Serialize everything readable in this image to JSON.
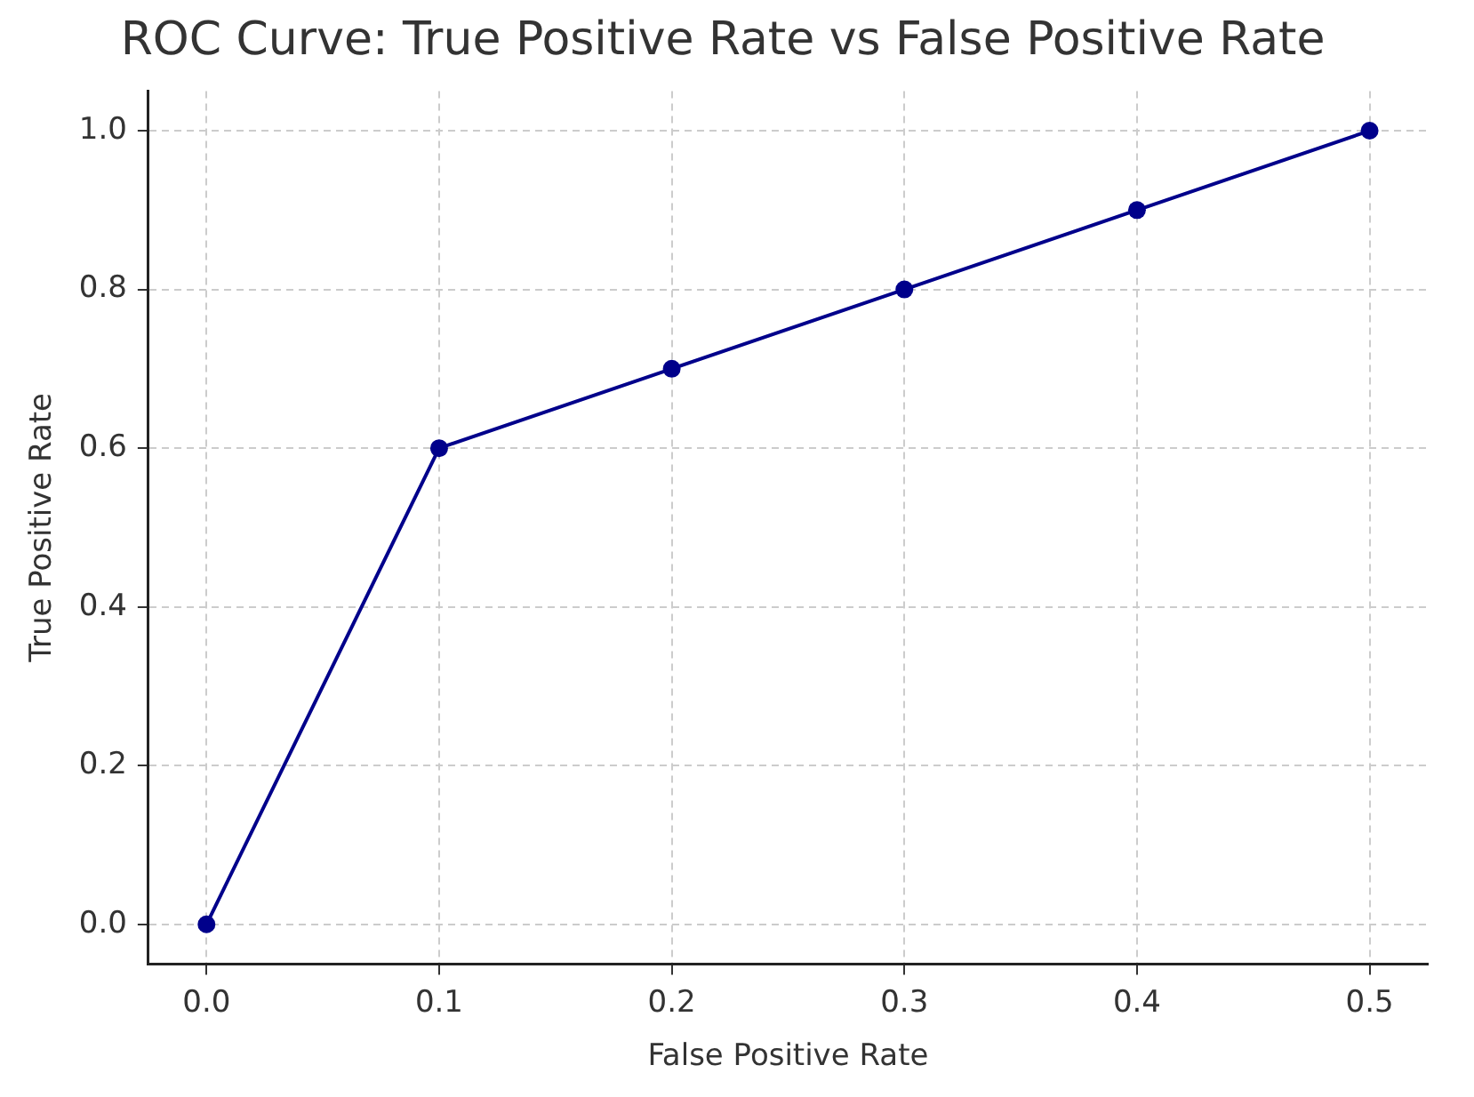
{
  "chart_data": {
    "type": "line",
    "title": "ROC Curve: True Positive Rate vs False Positive Rate",
    "xlabel": "False Positive Rate",
    "ylabel": "True Positive Rate",
    "x": [
      0.0,
      0.1,
      0.2,
      0.3,
      0.4,
      0.5
    ],
    "series": [
      {
        "color": "#00008b",
        "values": [
          0.0,
          0.6,
          0.7,
          0.8,
          0.9,
          1.0
        ]
      }
    ],
    "xlim": [
      -0.025,
      0.525
    ],
    "xticks": [
      {
        "value": 0,
        "label": "0.0"
      },
      {
        "value": 0.1,
        "label": "0.1"
      },
      {
        "value": 0.2,
        "label": "0.2"
      },
      {
        "value": 0.3,
        "label": "0.3"
      },
      {
        "value": 0.4,
        "label": "0.4"
      },
      {
        "value": 0.5,
        "label": "0.5"
      }
    ],
    "ylim": [
      -0.05,
      1.05
    ],
    "yticks": [
      {
        "value": 0,
        "label": "0.0"
      },
      {
        "value": 0.2,
        "label": "0.2"
      },
      {
        "value": 0.4,
        "label": "0.4"
      },
      {
        "value": 0.6,
        "label": "0.6"
      },
      {
        "value": 0.8,
        "label": "0.8"
      },
      {
        "value": 1.0,
        "label": "1.0"
      }
    ],
    "grid": true,
    "legend": false,
    "marker": "circle",
    "line_style": "solid"
  }
}
